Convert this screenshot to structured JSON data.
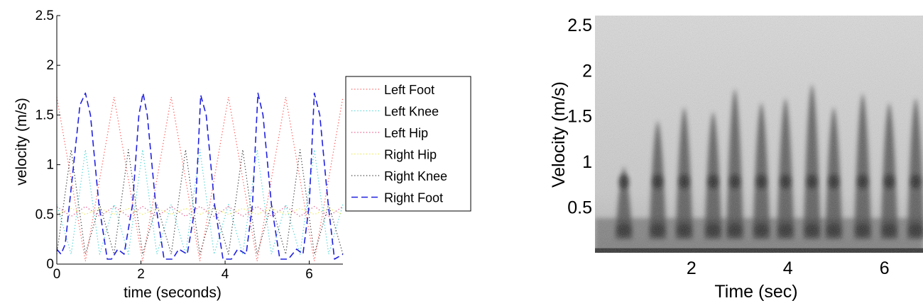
{
  "chart_data": [
    {
      "type": "line",
      "xlabel": "time (seconds)",
      "ylabel": "velocity (m/s)",
      "xlim": [
        0,
        6.8
      ],
      "ylim": [
        0,
        2.5
      ],
      "xticks": [
        0,
        2,
        4,
        6
      ],
      "xtick_labels": [
        "0",
        "2",
        "4",
        "6"
      ],
      "yticks": [
        0,
        0.5,
        1,
        1.5,
        2,
        2.5
      ],
      "ytick_labels": [
        "0",
        "0.5",
        "1",
        "1.5",
        "2",
        "2.5"
      ],
      "grid": false,
      "legend_position": "right",
      "series": [
        {
          "name": "Left Foot",
          "color": "#ff4d4d",
          "style": "dotted",
          "x": [
            0,
            0.68,
            1.36,
            2.04,
            2.72,
            3.4,
            4.08,
            4.76,
            5.44,
            6.12,
            6.8
          ],
          "y": [
            1.68,
            0.03,
            1.68,
            0.03,
            1.68,
            0.03,
            1.68,
            0.03,
            1.68,
            0.03,
            1.68
          ]
        },
        {
          "name": "Left Knee",
          "color": "#40d0d0",
          "style": "dotted",
          "x": [
            0,
            0.34,
            0.68,
            1.02,
            1.36,
            1.7,
            2.04,
            2.38,
            2.72,
            3.06,
            3.4,
            3.74,
            4.08,
            4.42,
            4.76,
            5.1,
            5.44,
            5.78,
            6.12,
            6.46,
            6.8
          ],
          "y": [
            0.6,
            0.1,
            1.15,
            0.1,
            0.6,
            0.1,
            1.15,
            0.1,
            0.6,
            0.1,
            1.15,
            0.1,
            0.6,
            0.1,
            1.15,
            0.1,
            0.6,
            0.1,
            1.15,
            0.1,
            0.6
          ]
        },
        {
          "name": "Left Hip",
          "color": "#e0407a",
          "style": "dotted",
          "x": [
            0,
            0.34,
            0.68,
            1.02,
            1.36,
            1.7,
            2.04,
            2.38,
            2.72,
            3.06,
            3.4,
            3.74,
            4.08,
            4.42,
            4.76,
            5.1,
            5.44,
            5.78,
            6.12,
            6.46,
            6.8
          ],
          "y": [
            0.58,
            0.48,
            0.58,
            0.48,
            0.58,
            0.48,
            0.58,
            0.48,
            0.58,
            0.48,
            0.58,
            0.48,
            0.58,
            0.48,
            0.58,
            0.48,
            0.58,
            0.48,
            0.58,
            0.48,
            0.58
          ]
        },
        {
          "name": "Right Hip",
          "color": "#e6e640",
          "style": "dotted",
          "x": [
            0,
            0.34,
            0.68,
            1.02,
            1.36,
            1.7,
            2.04,
            2.38,
            2.72,
            3.06,
            3.4,
            3.74,
            4.08,
            4.42,
            4.76,
            5.1,
            5.44,
            5.78,
            6.12,
            6.46,
            6.8
          ],
          "y": [
            0.5,
            0.56,
            0.5,
            0.56,
            0.5,
            0.56,
            0.5,
            0.56,
            0.5,
            0.56,
            0.5,
            0.56,
            0.5,
            0.56,
            0.5,
            0.56,
            0.5,
            0.56,
            0.5,
            0.56,
            0.5
          ]
        },
        {
          "name": "Right Knee",
          "color": "#303030",
          "style": "dotted",
          "x": [
            0,
            0.34,
            0.68,
            1.02,
            1.36,
            1.7,
            2.04,
            2.38,
            2.72,
            3.06,
            3.4,
            3.74,
            4.08,
            4.42,
            4.76,
            5.1,
            5.44,
            5.78,
            6.12,
            6.46,
            6.8
          ],
          "y": [
            0.1,
            1.15,
            0.1,
            0.6,
            0.1,
            1.15,
            0.1,
            0.6,
            0.1,
            1.15,
            0.1,
            0.6,
            0.1,
            1.15,
            0.1,
            0.6,
            0.1,
            1.15,
            0.1,
            0.6,
            0.1
          ]
        },
        {
          "name": "Right Foot",
          "color": "#2020e0",
          "style": "dashed",
          "x": [
            0,
            0.1,
            0.2,
            0.4,
            0.55,
            0.68,
            0.8,
            1.0,
            1.2,
            1.3,
            1.45,
            1.6,
            1.8,
            1.95,
            2.05,
            2.15,
            2.35,
            2.55,
            2.75,
            2.9,
            3.1,
            3.3,
            3.42,
            3.55,
            3.75,
            3.95,
            4.15,
            4.3,
            4.5,
            4.65,
            4.78,
            4.9,
            5.1,
            5.3,
            5.5,
            5.7,
            5.85,
            6.0,
            6.12,
            6.25,
            6.45,
            6.6,
            6.8
          ],
          "y": [
            0.15,
            0.1,
            0.2,
            1.0,
            1.6,
            1.72,
            1.5,
            0.6,
            0.05,
            0.05,
            0.15,
            0.1,
            0.6,
            1.5,
            1.72,
            1.5,
            0.6,
            0.05,
            0.05,
            0.15,
            0.1,
            0.6,
            1.7,
            1.5,
            0.6,
            0.05,
            0.05,
            0.15,
            0.1,
            0.6,
            1.72,
            1.5,
            0.6,
            0.05,
            0.05,
            0.15,
            0.1,
            0.6,
            1.72,
            1.5,
            0.6,
            0.05,
            0.1
          ]
        }
      ]
    },
    {
      "type": "heatmap",
      "xlabel": "Time (sec)",
      "ylabel": "Velocity (m/s)",
      "xlim": [
        0,
        6.8
      ],
      "ylim": [
        0,
        2.6
      ],
      "xticks": [
        2,
        4,
        6
      ],
      "xtick_labels": [
        "2",
        "4",
        "6"
      ],
      "yticks": [
        0.5,
        1,
        1.5,
        2,
        2.5
      ],
      "ytick_labels": [
        "0.5",
        "1",
        "1.5",
        "2",
        "2.5"
      ],
      "colormap": "gray",
      "peaks": {
        "time": [
          0.6,
          1.3,
          1.85,
          2.45,
          2.9,
          3.45,
          3.95,
          4.5,
          4.95,
          5.55,
          6.1,
          6.65
        ],
        "velocity": [
          0.95,
          1.45,
          1.6,
          1.55,
          1.8,
          1.65,
          1.7,
          1.85,
          1.6,
          1.75,
          1.65,
          1.7
        ]
      }
    }
  ]
}
